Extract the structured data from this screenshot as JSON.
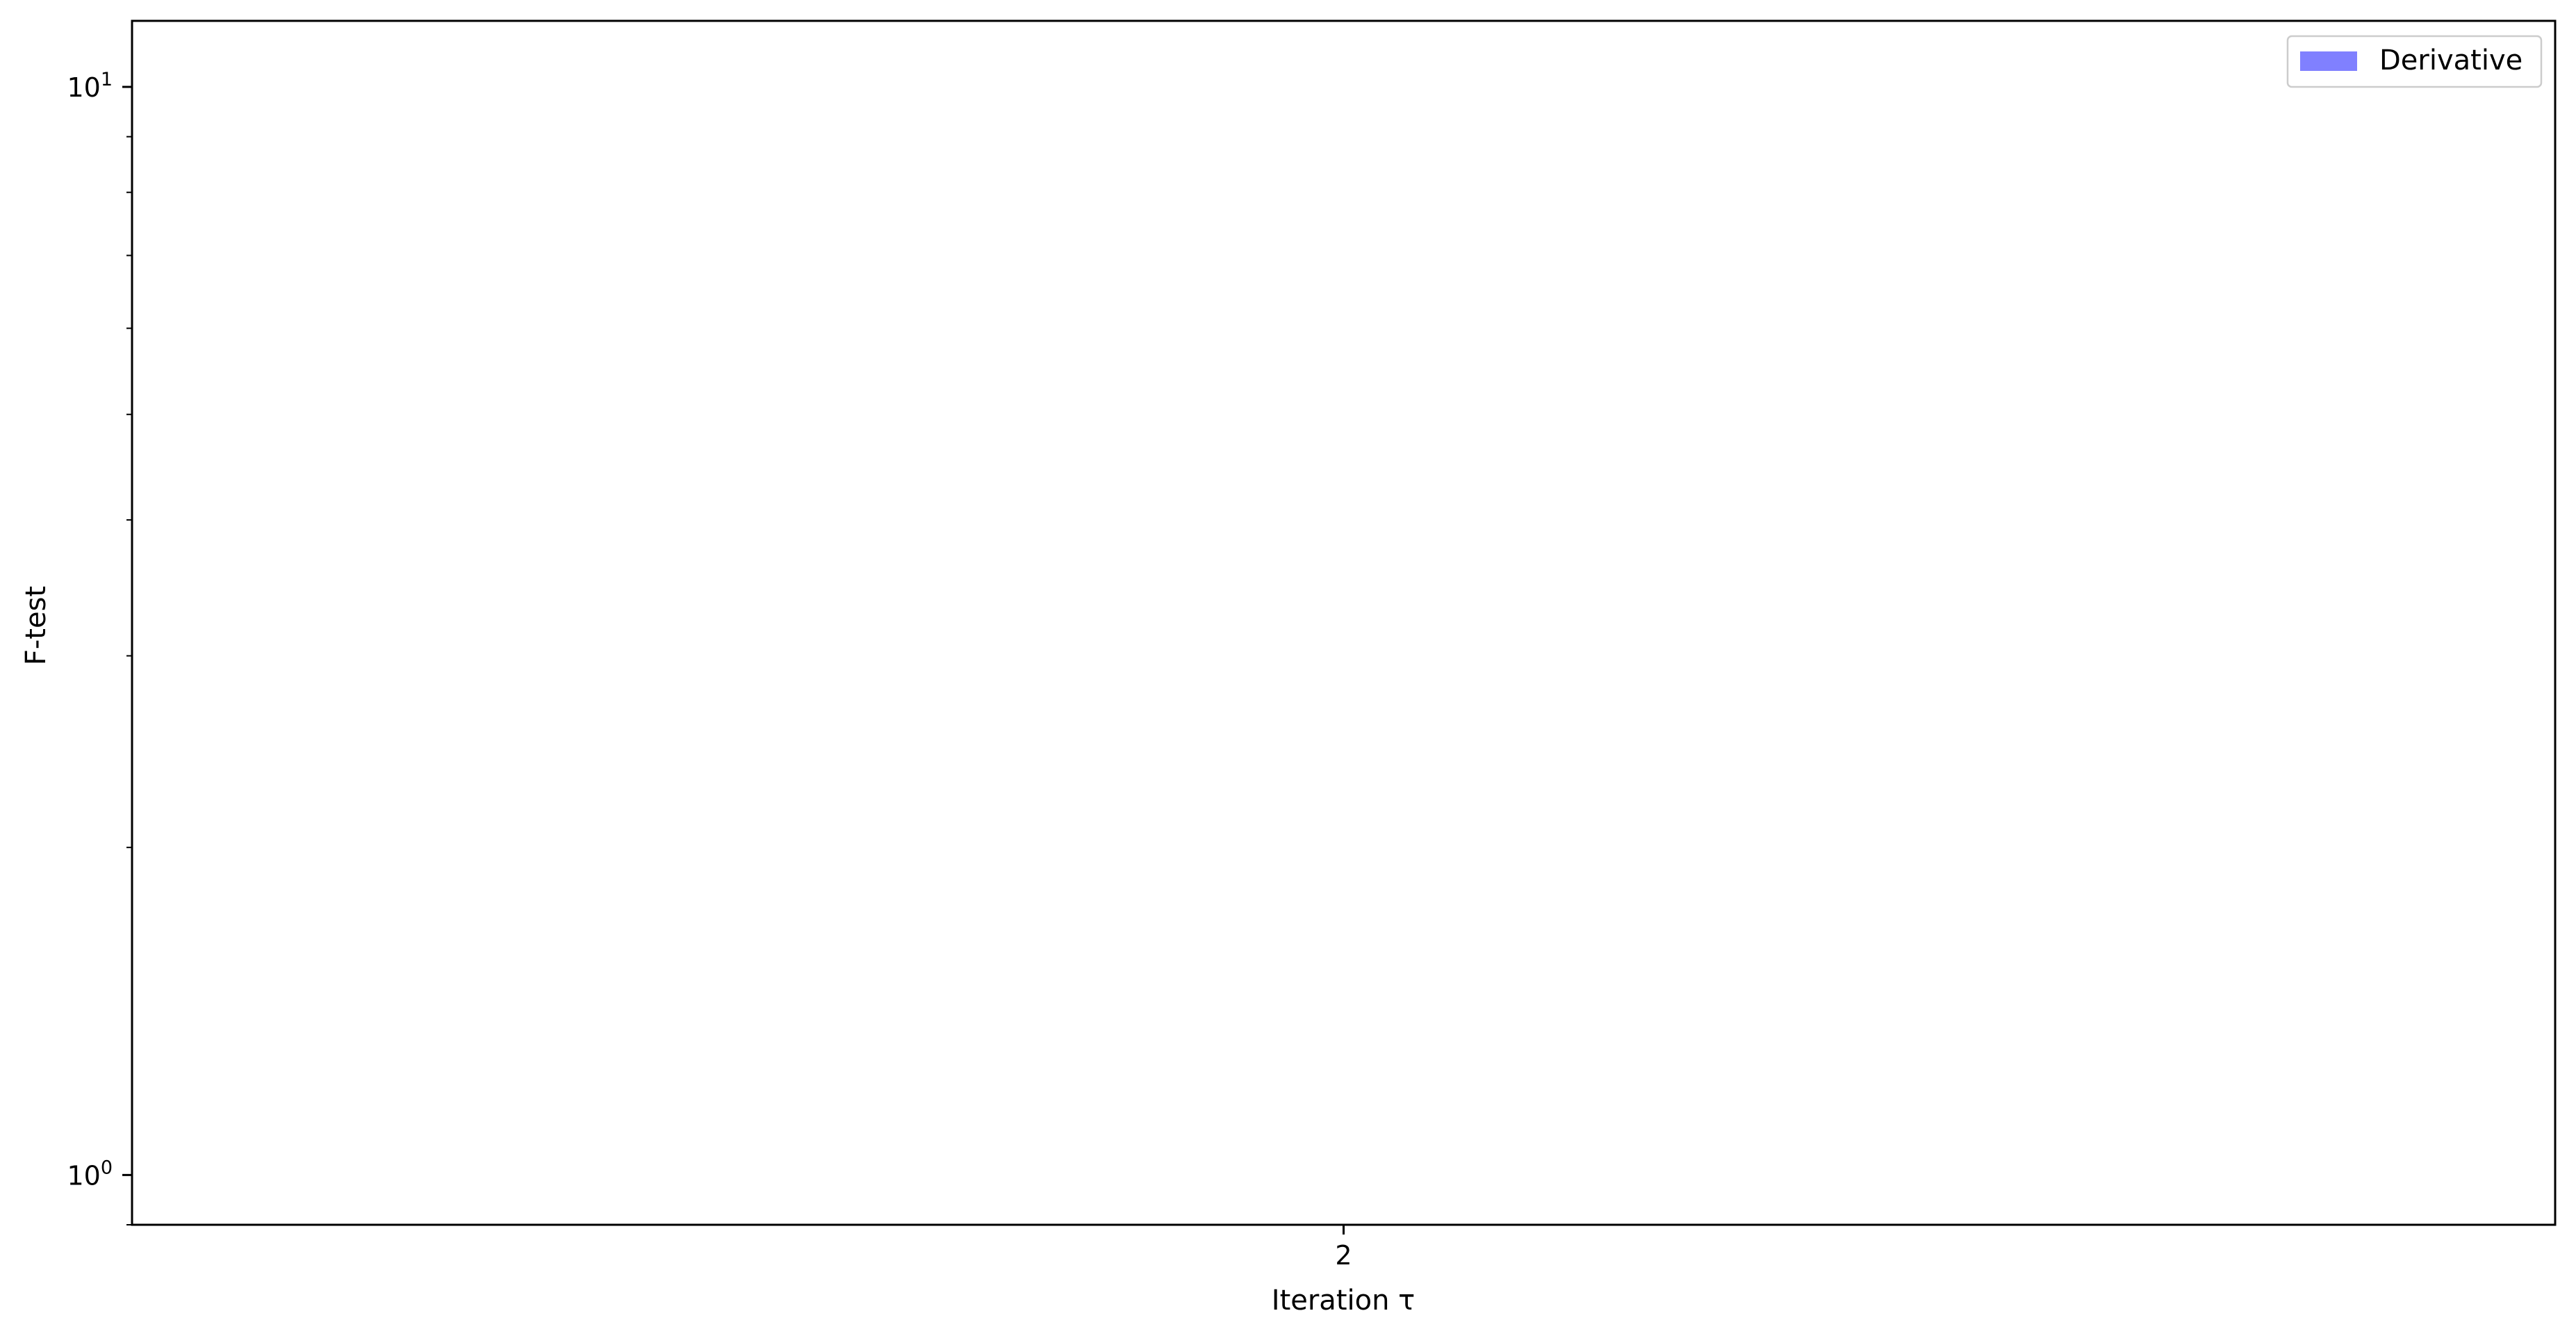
{
  "chart_data": {
    "type": "bar",
    "xlabel": "Iteration τ",
    "ylabel": "F-test",
    "y_scale": "log",
    "ylim": [
      0.9,
      11.5
    ],
    "x_categories": [
      "2"
    ],
    "y_ticks": [
      {
        "value": 1,
        "base": "10",
        "exp": "0"
      },
      {
        "value": 10,
        "base": "10",
        "exp": "1"
      }
    ],
    "y_minor_ticks": [
      2,
      3,
      4,
      5,
      6,
      7,
      8,
      9
    ],
    "series": [
      {
        "name": "Derivative",
        "color": "#8080ff",
        "values": []
      }
    ],
    "legend_position": "upper right",
    "grid": false
  }
}
